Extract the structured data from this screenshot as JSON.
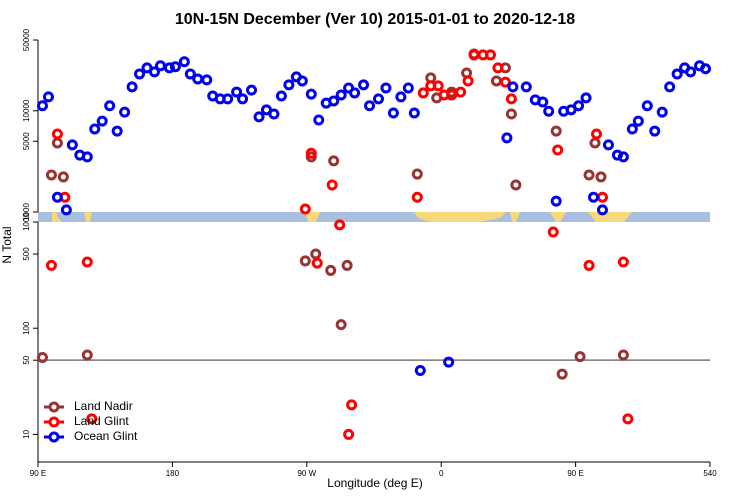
{
  "chart_data": {
    "type": "scatter",
    "title": "10N-15N December (Ver 10)   2015-01-01 to 2020-12-18",
    "x_label": "Longitude (deg E)",
    "y_label": "N Total",
    "xlim": [
      90,
      540
    ],
    "xticks": [
      {
        "value": 90,
        "label": "90 E"
      },
      180,
      {
        "value": 270,
        "label": "90 W"
      },
      {
        "value": 360,
        "label": "0"
      },
      {
        "value": 450,
        "label": "90 E"
      },
      540
    ],
    "ylim": [
      5.5,
      50000
    ],
    "yscale": "log",
    "ybreak": 1000,
    "yticks": [
      10,
      50,
      100,
      500,
      1000,
      5000,
      10000,
      50000
    ],
    "hline": 50,
    "legend": "lower left",
    "series": [
      {
        "name": "Land Nadir",
        "color": "#993333",
        "x": [
          93,
          99,
          103,
          107,
          123,
          269,
          273,
          276,
          286,
          288,
          293,
          297,
          344,
          353,
          357,
          367,
          377,
          382,
          397,
          403,
          407,
          410,
          437,
          441,
          453,
          459,
          463,
          467,
          482
        ],
        "values": [
          53,
          2320,
          4800,
          2220,
          56,
          430,
          3500,
          500,
          350,
          3200,
          108,
          390,
          2370,
          21100,
          13400,
          15300,
          23600,
          36400,
          19700,
          26500,
          9300,
          1850,
          6300,
          37,
          54,
          2320,
          4800,
          2220,
          56
        ]
      },
      {
        "name": "Land Glint",
        "color": "#ff0000",
        "x": [
          99,
          103,
          108,
          123,
          126,
          269,
          273,
          277,
          287,
          292,
          298,
          300,
          344,
          348,
          353,
          358,
          362,
          367,
          373,
          378,
          382,
          388,
          393,
          398,
          403,
          407,
          435,
          438,
          459,
          464,
          468,
          482,
          485
        ],
        "values": [
          390,
          5900,
          1400,
          420,
          14,
          1070,
          3800,
          410,
          1850,
          940,
          10,
          19,
          1400,
          15000,
          17600,
          17600,
          14300,
          14300,
          15300,
          19700,
          35600,
          35600,
          35600,
          26500,
          19200,
          13100,
          805,
          4100,
          390,
          5900,
          1400,
          420,
          14
        ]
      },
      {
        "name": "Ocean Glint",
        "color": "#0000ee",
        "x": [
          93,
          97,
          103,
          109,
          113,
          118,
          123,
          128,
          133,
          138,
          143,
          148,
          153,
          158,
          163,
          168,
          172,
          178,
          182,
          188,
          192,
          197,
          203,
          207,
          212,
          217,
          223,
          227,
          233,
          238,
          243,
          248,
          253,
          258,
          263,
          267,
          273,
          278,
          283,
          288,
          293,
          298,
          302,
          308,
          312,
          318,
          323,
          328,
          333,
          338,
          342,
          346,
          365,
          404,
          408,
          417,
          423,
          428,
          432,
          437,
          442,
          447,
          452,
          457,
          462,
          468,
          472,
          478,
          482,
          488,
          492,
          498,
          503,
          508,
          513,
          518,
          523,
          527,
          533,
          537
        ],
        "values": [
          11200,
          13700,
          1400,
          1050,
          4600,
          3650,
          3500,
          6600,
          7900,
          11200,
          6300,
          9700,
          17200,
          23100,
          26500,
          24200,
          27800,
          26500,
          27200,
          30500,
          23100,
          20600,
          20200,
          14000,
          13100,
          13100,
          15300,
          13100,
          16000,
          8700,
          10200,
          9300,
          14000,
          18000,
          21600,
          19700,
          14600,
          8100,
          11900,
          12500,
          14300,
          16800,
          15000,
          18000,
          11200,
          13100,
          16800,
          9500,
          13700,
          16800,
          9500,
          40,
          48,
          5400,
          17200,
          17200,
          12800,
          12200,
          9900,
          1280,
          9900,
          10200,
          11200,
          13400,
          1400,
          1050,
          4600,
          3650,
          3500,
          6600,
          7900,
          11200,
          6300,
          9700,
          17200,
          23100,
          26500,
          24200,
          27800,
          26000
        ]
      }
    ]
  }
}
